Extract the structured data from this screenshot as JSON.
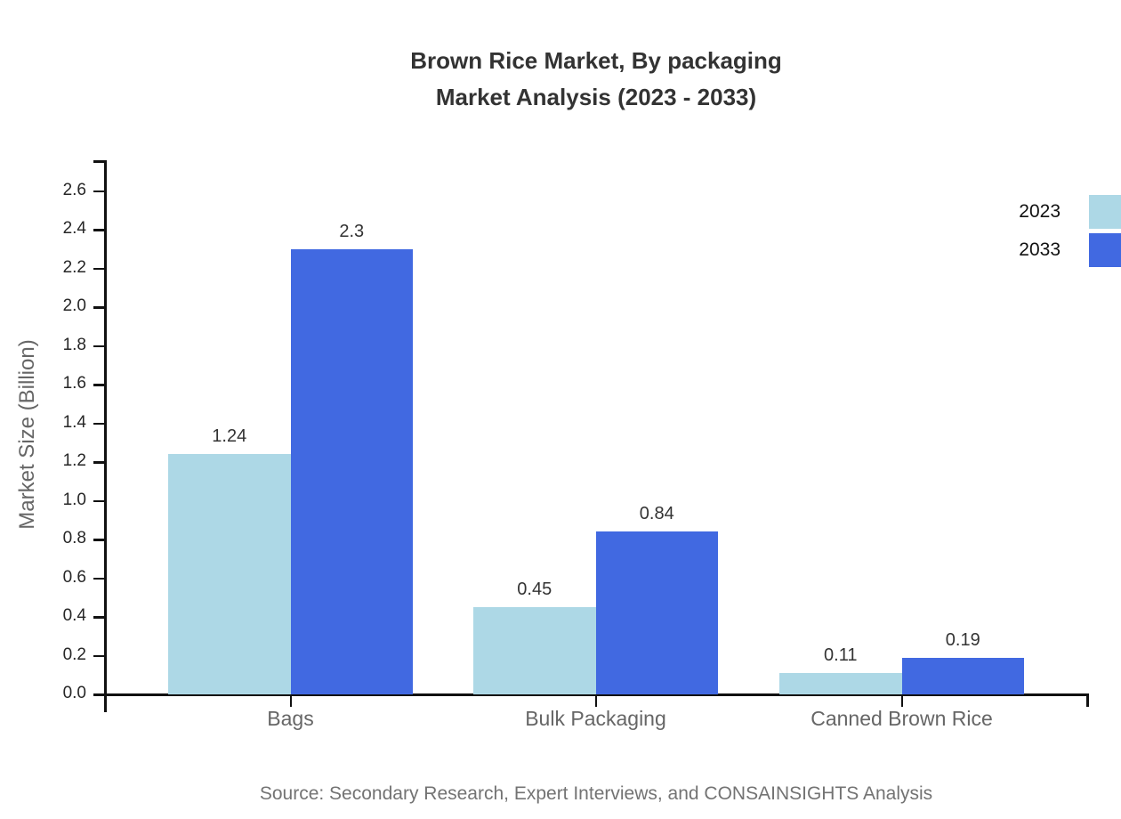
{
  "title": {
    "line1": "Brown Rice Market, By packaging",
    "line2": "Market Analysis (2023 - 2033)"
  },
  "source": "Source: Secondary Research, Expert Interviews, and CONSAINSIGHTS Analysis",
  "legend": {
    "position": "top-right",
    "items": [
      {
        "label": "2023",
        "color": "#ADD8E6"
      },
      {
        "label": "2033",
        "color": "#4169E1"
      }
    ]
  },
  "colors": {
    "series_2023": "#ADD8E6",
    "series_2033": "#4169E1",
    "axis": "#111111",
    "title_text": "#333333",
    "tick_text": "#262626",
    "category_text": "#666666",
    "source_text": "#737373"
  },
  "chart_data": {
    "type": "bar",
    "title": "Brown Rice Market, By packaging Market Analysis (2023 - 2033)",
    "categories": [
      "Bags",
      "Bulk Packaging",
      "Canned Brown Rice"
    ],
    "series": [
      {
        "name": "2023",
        "color": "#ADD8E6",
        "values": [
          1.24,
          0.45,
          0.11
        ]
      },
      {
        "name": "2033",
        "color": "#4169E1",
        "values": [
          2.3,
          0.84,
          0.19
        ]
      }
    ],
    "value_labels": [
      [
        "1.24",
        "0.45",
        "0.11"
      ],
      [
        "2.3",
        "0.84",
        "0.19"
      ]
    ],
    "xlabel": "",
    "ylabel": "Market Size (Billion)",
    "ylim": [
      0,
      2.76
    ],
    "yticks": [
      0.0,
      0.2,
      0.4,
      0.6,
      0.8,
      1.0,
      1.2,
      1.4,
      1.6,
      1.8,
      2.0,
      2.2,
      2.4,
      2.6
    ],
    "grid": false,
    "legend_position": "top-right"
  }
}
